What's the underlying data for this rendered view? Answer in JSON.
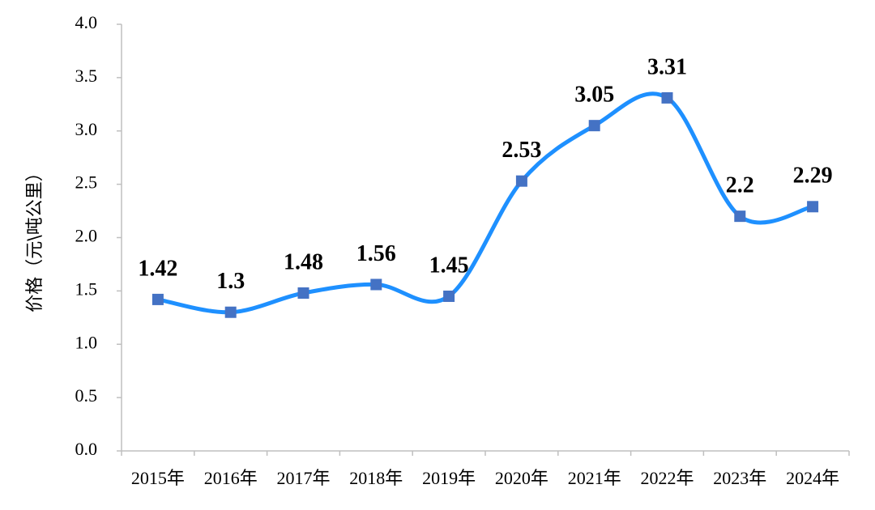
{
  "chart_data": {
    "type": "line",
    "y_label": "价格（元\\吨公里）",
    "categories": [
      "2015年",
      "2016年",
      "2017年",
      "2018年",
      "2019年",
      "2020年",
      "2021年",
      "2022年",
      "2023年",
      "2024年"
    ],
    "series": [
      {
        "name": "价格",
        "color": "#1e90ff",
        "marker_color": "#4472c4",
        "values": [
          1.42,
          1.3,
          1.48,
          1.56,
          1.45,
          2.53,
          3.05,
          3.31,
          2.2,
          2.29
        ]
      }
    ],
    "ylim": [
      0,
      4
    ],
    "yticks": [
      {
        "value": 0,
        "label": "0.0"
      },
      0.5,
      {
        "value": 1,
        "label": "1.0"
      },
      1.5,
      {
        "value": 2,
        "label": "2.0"
      },
      2.5,
      {
        "value": 3,
        "label": "3.0"
      },
      3.5,
      {
        "value": 4,
        "label": "4.0"
      }
    ]
  }
}
